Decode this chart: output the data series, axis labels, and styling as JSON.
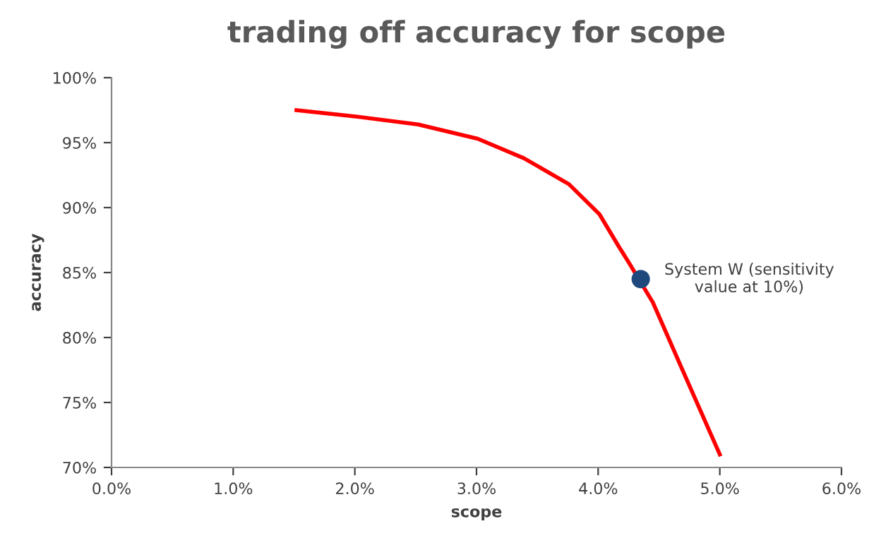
{
  "chart_data": {
    "type": "line",
    "title": "trading off accuracy for scope",
    "xlabel": "scope",
    "ylabel": "accuracy",
    "series": [
      {
        "color": "#ff0000",
        "x": [
          1.52,
          2.02,
          2.52,
          3.01,
          3.39,
          3.76,
          4.01,
          4.17,
          4.25,
          4.45,
          4.67,
          5.0
        ],
        "values": [
          97.5,
          97.0,
          96.4,
          95.3,
          93.8,
          91.8,
          89.5,
          87.0,
          85.8,
          82.7,
          78.0,
          71.0
        ]
      },
      {
        "type": "scatter",
        "color": "#1f497d",
        "x": [
          4.35
        ],
        "values": [
          84.5
        ]
      }
    ],
    "annotations": [
      {
        "text": "System W (sensitivity\nvalue at 10%)",
        "x": 4.35,
        "y": 84.5
      }
    ],
    "xlim": [
      0,
      6
    ],
    "ylim": [
      70,
      100
    ],
    "xticks": [
      {
        "value": 0,
        "label": "0.0%"
      },
      {
        "value": 1,
        "label": "1.0%"
      },
      {
        "value": 2,
        "label": "2.0%"
      },
      {
        "value": 3,
        "label": "3.0%"
      },
      {
        "value": 4,
        "label": "4.0%"
      },
      {
        "value": 5,
        "label": "5.0%"
      },
      {
        "value": 6,
        "label": "6.0%"
      }
    ],
    "yticks": [
      {
        "value": 70,
        "label": "70%"
      },
      {
        "value": 75,
        "label": "75%"
      },
      {
        "value": 80,
        "label": "80%"
      },
      {
        "value": 85,
        "label": "85%"
      },
      {
        "value": 90,
        "label": "90%"
      },
      {
        "value": 95,
        "label": "95%"
      },
      {
        "value": 100,
        "label": "100%"
      }
    ],
    "grid": false,
    "legend": false
  }
}
